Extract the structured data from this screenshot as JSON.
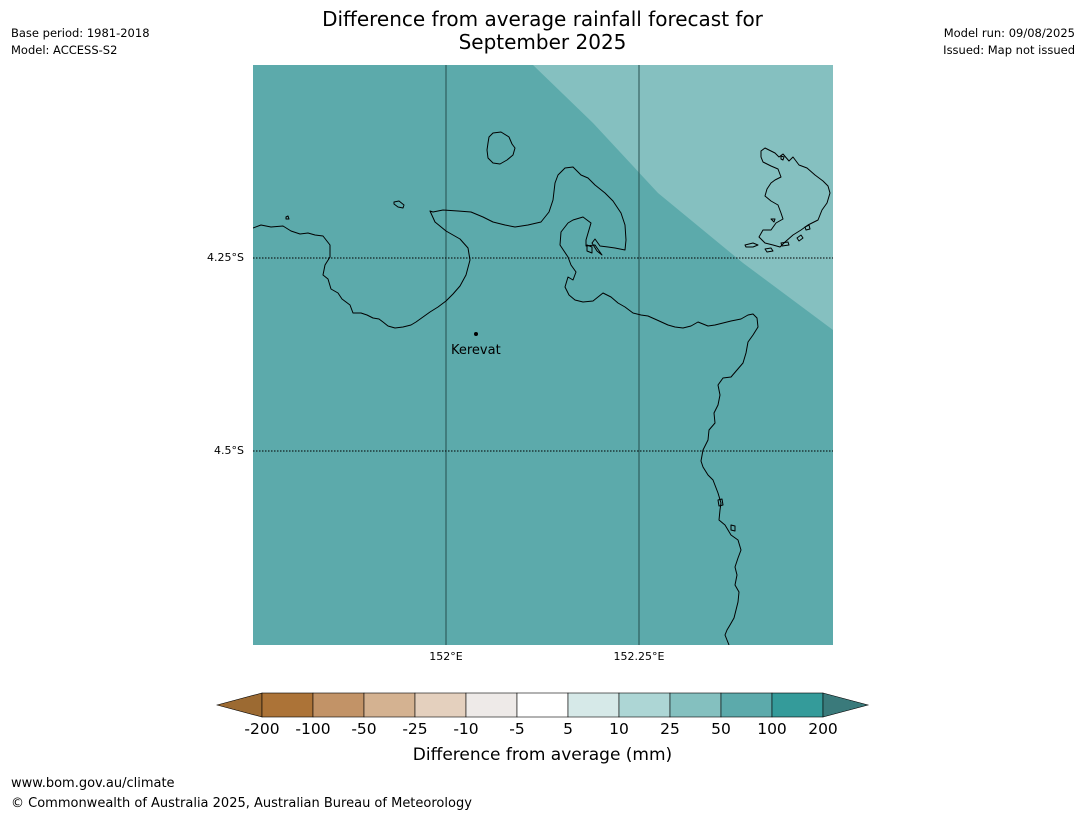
{
  "title": {
    "line1": "Difference from average rainfall forecast for",
    "line2": "September 2025"
  },
  "meta": {
    "base_period": "Base period: 1981-2018",
    "model": "Model: ACCESS-S2",
    "model_run": "Model run: 09/08/2025",
    "issued": "Issued: Map not issued"
  },
  "map": {
    "lat_labels": [
      "4.25°S",
      "4.5°S"
    ],
    "lon_labels": [
      "152°E",
      "152.25°E"
    ],
    "place": "Kerevat",
    "colors": {
      "main_fill": "#5caaab",
      "light_fill": "#85c0c0",
      "coastline": "#000000"
    },
    "categories": {
      "main_area": "50 to 100",
      "northeast_area": "25 to 50"
    }
  },
  "colorbar": {
    "ticks": [
      "-200",
      "-100",
      "-50",
      "-25",
      "-10",
      "-5",
      "5",
      "10",
      "25",
      "50",
      "100",
      "200"
    ],
    "colors": [
      "#9c6a32",
      "#ac7337",
      "#c29367",
      "#d4b291",
      "#e4d0be",
      "#eeeae8",
      "#ffffff",
      "#d6e9e8",
      "#add6d5",
      "#84c0bf",
      "#5caaab",
      "#349b9a",
      "#3a7a7b"
    ],
    "label": "Difference from average (mm)"
  },
  "footer": {
    "url": "www.bom.gov.au/climate",
    "copyright": "© Commonwealth of Australia 2025, Australian Bureau of Meteorology"
  }
}
